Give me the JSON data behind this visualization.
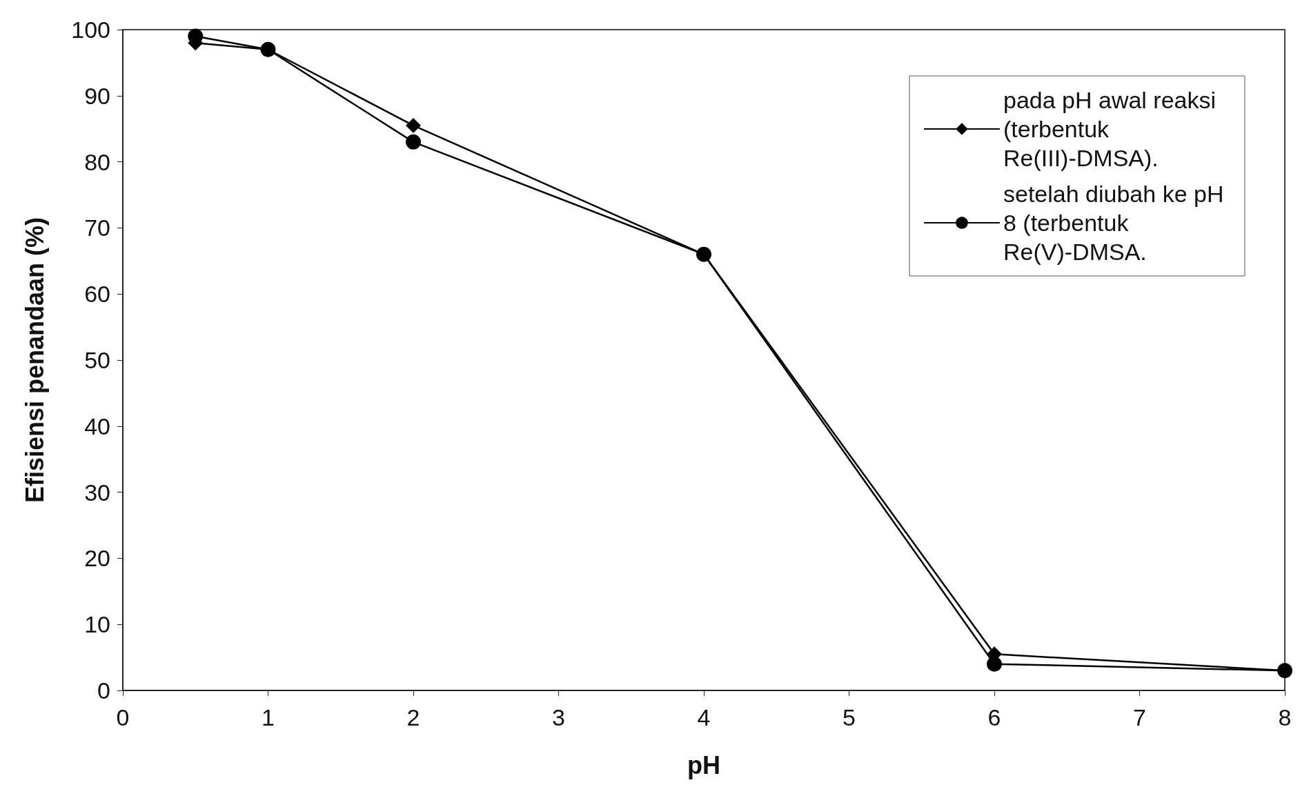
{
  "chart_data": {
    "type": "line",
    "xlabel": "pH",
    "ylabel": "Efisiensi penandaan (%)",
    "xlim": [
      0,
      8
    ],
    "xticks": [
      0,
      1,
      2,
      3,
      4,
      5,
      6,
      7,
      8
    ],
    "ylim": [
      0,
      100
    ],
    "yticks": [
      0,
      10,
      20,
      30,
      40,
      50,
      60,
      70,
      80,
      90,
      100
    ],
    "grid": false,
    "legend": "top right",
    "line_style": "solid",
    "series": [
      {
        "name": "pada pH awal reaksi (terbentuk Re(III)-DMSA).",
        "color": "#000000",
        "marker": "diamond",
        "x": [
          0.5,
          1,
          2,
          4,
          6,
          8
        ],
        "values": [
          98,
          97,
          85.5,
          66,
          5.5,
          3
        ]
      },
      {
        "name": "setelah diubah ke pH 8 (terbentuk Re(V)-DMSA.",
        "color": "#000000",
        "marker": "circle",
        "x": [
          0.5,
          1,
          2,
          4,
          6,
          8
        ],
        "values": [
          99,
          97,
          83,
          66,
          4,
          3
        ]
      }
    ]
  }
}
